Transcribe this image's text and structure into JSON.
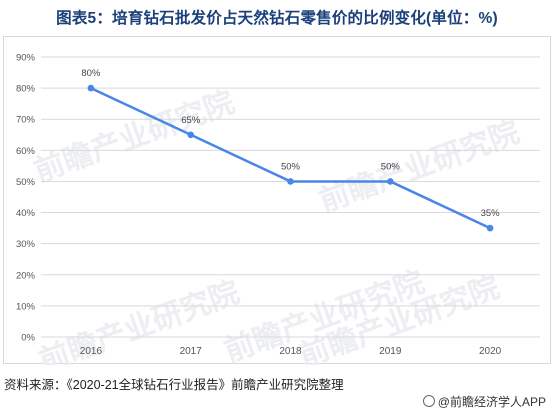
{
  "title": "图表5：培育钻石批发价占天然钻石零售价的比例变化(单位：%)",
  "chart_data": {
    "type": "line",
    "categories": [
      "2016",
      "2017",
      "2018",
      "2019",
      "2020"
    ],
    "series": [
      {
        "values": [
          80,
          65,
          50,
          50,
          35
        ],
        "color": "#4a86e8"
      }
    ],
    "data_labels": [
      "80%",
      "65%",
      "50%",
      "50%",
      "35%"
    ],
    "y_ticks": [
      0,
      10,
      20,
      30,
      40,
      50,
      60,
      70,
      80,
      90
    ],
    "y_tick_labels": [
      "0%",
      "10%",
      "20%",
      "30%",
      "40%",
      "50%",
      "60%",
      "70%",
      "80%",
      "90%"
    ],
    "ylim": [
      0,
      90
    ],
    "grid": true,
    "legend": "none"
  },
  "watermark": "前瞻产业研究院",
  "source": "资料来源：《2020-21全球钻石行业报告》前瞻产业研究院整理",
  "footer_brand": "@前瞻经济学人APP"
}
